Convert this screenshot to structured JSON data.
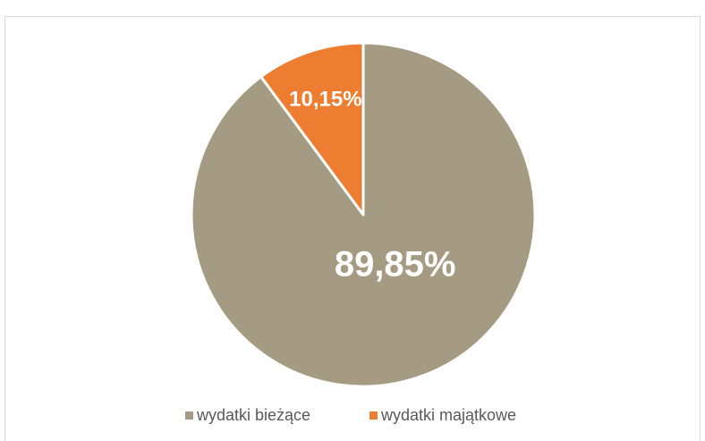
{
  "chart_data": {
    "type": "pie",
    "categories": [
      "wydatki bieżące",
      "wydatki majątkowe"
    ],
    "values": [
      89.85,
      10.15
    ],
    "value_labels": [
      "89,85%",
      "10,15%"
    ],
    "colors": [
      "#a59a82",
      "#ed7d31"
    ],
    "legend": "bottom"
  }
}
